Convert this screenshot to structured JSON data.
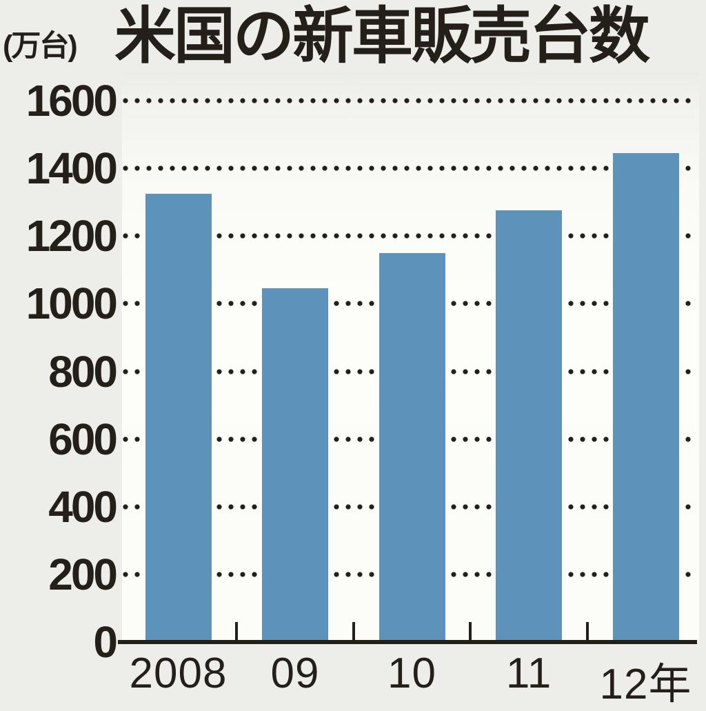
{
  "chart": {
    "title": "米国の新車販売台数",
    "unit_label": "(万台)",
    "ink_color": "#251f1a",
    "bar_color": "#5d92ba",
    "background_color": "#edeee9",
    "plot_background_color": "#fcfcf8"
  },
  "chart_data": {
    "type": "bar",
    "title": "米国の新車販売台数",
    "ylabel": "(万台)",
    "xlabel": "",
    "categories": [
      "2008",
      "09",
      "10",
      "11",
      "12年"
    ],
    "values": [
      1325,
      1045,
      1150,
      1275,
      1445
    ],
    "ylim": [
      0,
      1600
    ],
    "ytick_step": 200,
    "yticks": [
      0,
      200,
      400,
      600,
      800,
      1000,
      1200,
      1400,
      1600
    ],
    "grid": "horizontal-dotted",
    "legend": "none",
    "bar_color": "#5d92ba"
  }
}
